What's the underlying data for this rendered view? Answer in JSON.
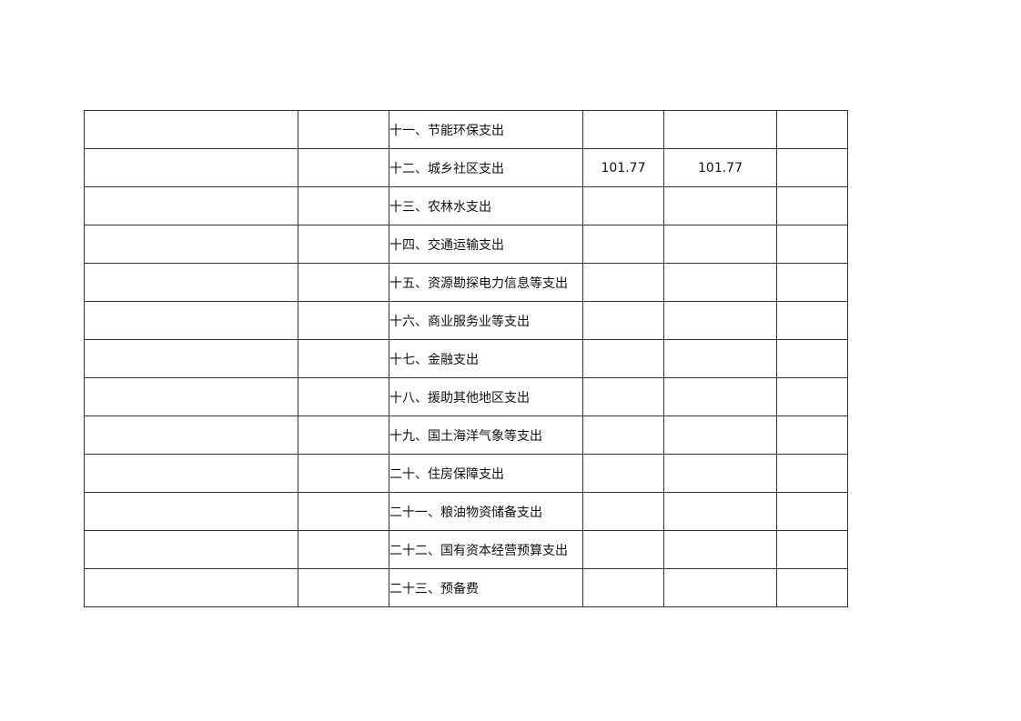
{
  "table": {
    "rows": [
      {
        "item": "十一、节能环保支出",
        "v1": "",
        "v2": "",
        "v3": ""
      },
      {
        "item": "十二、城乡社区支出",
        "v1": "101.77",
        "v2": "101.77",
        "v3": ""
      },
      {
        "item": "十三、农林水支出",
        "v1": "",
        "v2": "",
        "v3": ""
      },
      {
        "item": "十四、交通运输支出",
        "v1": "",
        "v2": "",
        "v3": ""
      },
      {
        "item": "十五、资源勘探电力信息等支出",
        "v1": "",
        "v2": "",
        "v3": ""
      },
      {
        "item": "十六、商业服务业等支出",
        "v1": "",
        "v2": "",
        "v3": ""
      },
      {
        "item": "十七、金融支出",
        "v1": "",
        "v2": "",
        "v3": ""
      },
      {
        "item": "十八、援助其他地区支出",
        "v1": "",
        "v2": "",
        "v3": ""
      },
      {
        "item": "十九、国土海洋气象等支出",
        "v1": "",
        "v2": "",
        "v3": ""
      },
      {
        "item": "二十、住房保障支出",
        "v1": "",
        "v2": "",
        "v3": ""
      },
      {
        "item": "二十一、粮油物资储备支出",
        "v1": "",
        "v2": "",
        "v3": ""
      },
      {
        "item": "二十二、国有资本经营预算支出",
        "v1": "",
        "v2": "",
        "v3": ""
      },
      {
        "item": "二十三、预备费",
        "v1": "",
        "v2": "",
        "v3": ""
      }
    ]
  }
}
